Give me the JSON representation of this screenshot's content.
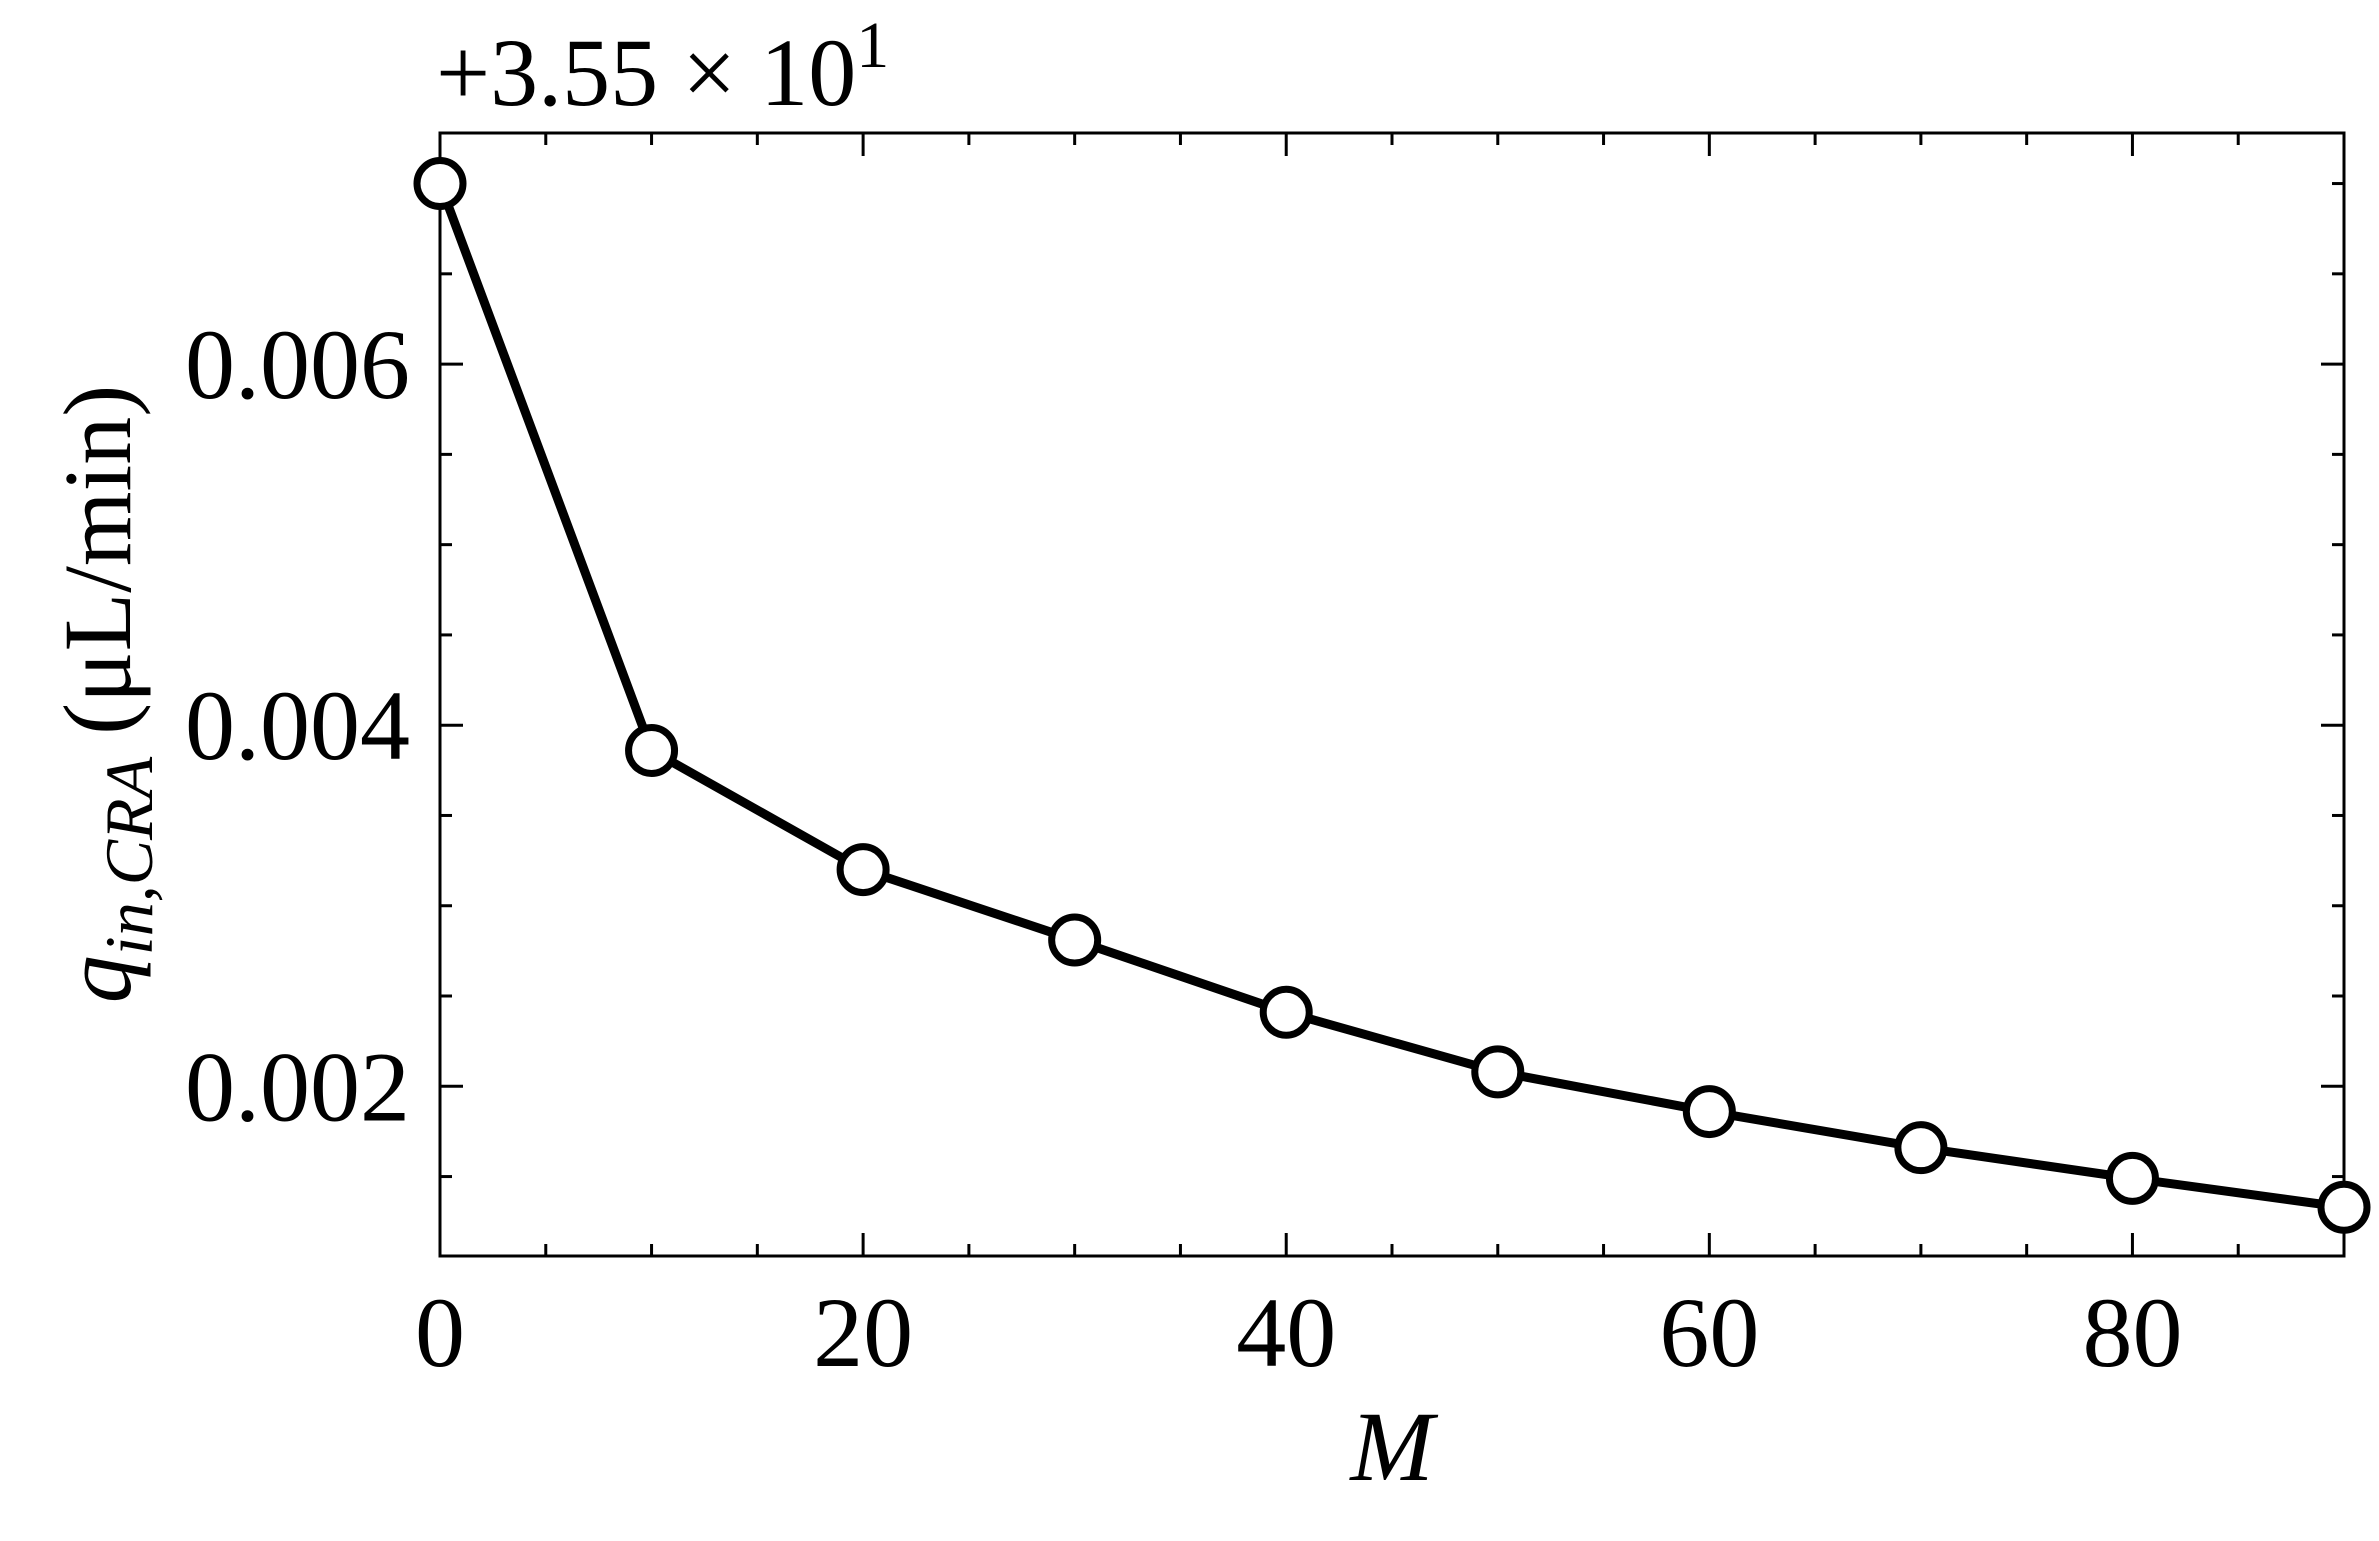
{
  "chart_data": {
    "type": "line",
    "xlabel": "M",
    "ylabel": {
      "symbol": "q",
      "subscript": "in,CRA",
      "unit": "(μL/min)"
    },
    "offset_text": {
      "base": "+3.55 × 10",
      "exponent": "1"
    },
    "x": [
      0,
      10,
      20,
      30,
      40,
      50,
      60,
      70,
      80,
      90
    ],
    "series": [
      {
        "color": "#000000",
        "marker_fill": "#ffffff",
        "values": [
          0.007,
          0.00386,
          0.0032,
          0.00281,
          0.00241,
          0.00208,
          0.00186,
          0.00166,
          0.00149,
          0.00133
        ]
      }
    ],
    "xlim": [
      0,
      90
    ],
    "ylim": [
      0.00106,
      0.00728
    ],
    "xticks": [
      0,
      20,
      40,
      60,
      80
    ],
    "yticks": [
      0.002,
      0.004,
      0.006
    ],
    "xminorticks": [
      5,
      10,
      15,
      25,
      30,
      35,
      45,
      50,
      55,
      65,
      70,
      75,
      85
    ],
    "yminorticks": [
      0.0015,
      0.0025,
      0.003,
      0.0035,
      0.0045,
      0.005,
      0.0055,
      0.0065,
      0.007
    ],
    "grid": false
  }
}
